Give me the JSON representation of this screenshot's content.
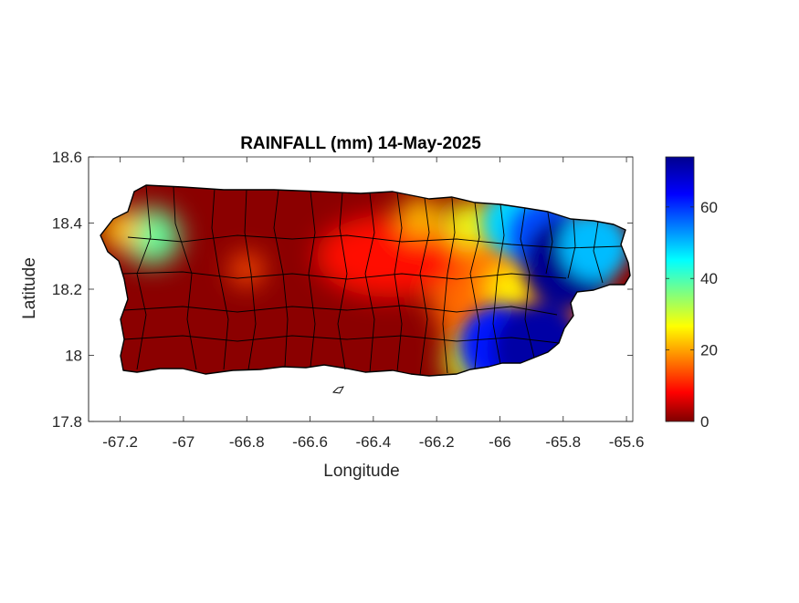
{
  "chart_data": {
    "type": "heatmap",
    "title": "RAINFALL (mm) 14-May-2025",
    "xlabel": "Longitude",
    "ylabel": "Latitude",
    "xlim": [
      -67.3,
      -65.58
    ],
    "ylim": [
      17.8,
      18.6
    ],
    "xticks": [
      -67.2,
      -67,
      -66.8,
      -66.6,
      -66.4,
      -66.2,
      -66,
      -65.8,
      -65.6
    ],
    "xtick_labels": [
      "-67.2",
      "-67",
      "-66.8",
      "-66.6",
      "-66.4",
      "-66.2",
      "-66",
      "-65.8",
      "-65.6"
    ],
    "yticks": [
      17.8,
      18,
      18.2,
      18.4,
      18.6
    ],
    "ytick_labels": [
      "17.8",
      "18",
      "18.2",
      "18.4",
      "18.6"
    ],
    "colorbar": {
      "colormap": "jet",
      "range": [
        0,
        74
      ],
      "ticks": [
        0,
        20,
        40,
        60
      ],
      "tick_labels": [
        "0",
        "20",
        "40",
        "60"
      ]
    },
    "grid": false,
    "rain_features": [
      {
        "lon": -67.1,
        "lat": 18.36,
        "value": 38
      },
      {
        "lon": -67.2,
        "lat": 18.38,
        "value": 22
      },
      {
        "lon": -66.8,
        "lat": 18.26,
        "value": 14
      },
      {
        "lon": -66.25,
        "lat": 18.42,
        "value": 22
      },
      {
        "lon": -66.1,
        "lat": 18.4,
        "value": 28
      },
      {
        "lon": -65.95,
        "lat": 18.4,
        "value": 48
      },
      {
        "lon": -65.86,
        "lat": 18.36,
        "value": 58
      },
      {
        "lon": -65.78,
        "lat": 18.28,
        "value": 74
      },
      {
        "lon": -65.7,
        "lat": 18.33,
        "value": 50
      },
      {
        "lon": -65.97,
        "lat": 18.2,
        "value": 26
      },
      {
        "lon": -66.0,
        "lat": 18.03,
        "value": 62
      },
      {
        "lon": -65.88,
        "lat": 18.02,
        "value": 72
      },
      {
        "lon": -66.1,
        "lat": 17.98,
        "value": 30
      }
    ]
  }
}
